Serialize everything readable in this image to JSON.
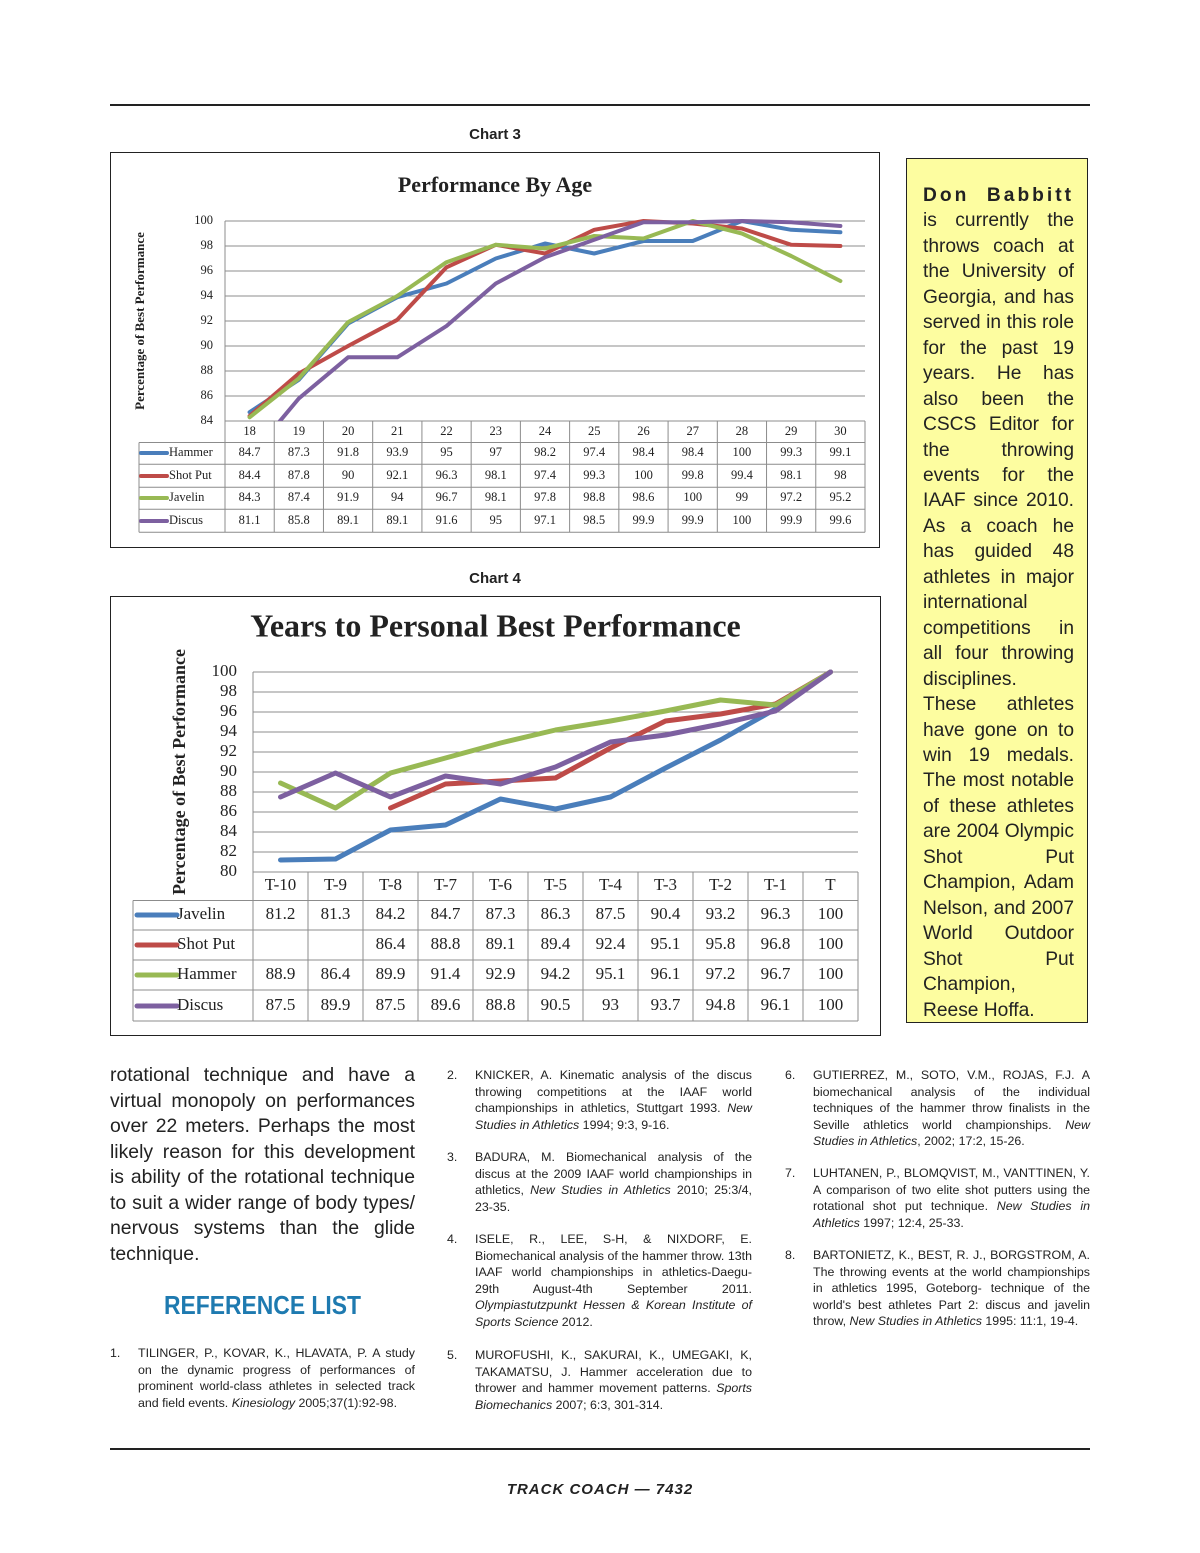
{
  "chart_data": [
    {
      "type": "line",
      "caption": "Chart 3",
      "title": "Performance By Age",
      "y_label": "Percentage of Best Performance",
      "categories": [
        "18",
        "19",
        "20",
        "21",
        "22",
        "23",
        "24",
        "25",
        "26",
        "27",
        "28",
        "29",
        "30"
      ],
      "series": [
        {
          "name": "Hammer",
          "color": "#4a7ebb",
          "values": [
            84.7,
            87.3,
            91.8,
            93.9,
            95,
            97,
            98.2,
            97.4,
            98.4,
            98.4,
            100,
            99.3,
            99.1
          ]
        },
        {
          "name": "Shot Put",
          "color": "#be4b48",
          "values": [
            84.4,
            87.8,
            90,
            92.1,
            96.3,
            98.1,
            97.4,
            99.3,
            100,
            99.8,
            99.4,
            98.1,
            98
          ]
        },
        {
          "name": "Javelin",
          "color": "#98b954",
          "values": [
            84.3,
            87.4,
            91.9,
            94,
            96.7,
            98.1,
            97.8,
            98.8,
            98.6,
            100,
            99,
            97.2,
            95.2
          ]
        },
        {
          "name": "Discus",
          "color": "#7d60a0",
          "values": [
            81.1,
            85.8,
            89.1,
            89.1,
            91.6,
            95,
            97.1,
            98.5,
            99.9,
            99.9,
            100,
            99.9,
            99.6
          ]
        }
      ],
      "ylim": [
        84,
        100
      ],
      "yticks": [
        84,
        86,
        88,
        90,
        92,
        94,
        96,
        98,
        100
      ],
      "grid": true
    },
    {
      "type": "line",
      "caption": "Chart 4",
      "title": "Years to Personal Best Performance",
      "y_label": "Percentage of Best Performance",
      "categories": [
        "T-10",
        "T-9",
        "T-8",
        "T-7",
        "T-6",
        "T-5",
        "T-4",
        "T-3",
        "T-2",
        "T-1",
        "T"
      ],
      "series": [
        {
          "name": "Javelin",
          "color": "#4a7ebb",
          "values": [
            81.2,
            81.3,
            84.2,
            84.7,
            87.3,
            86.3,
            87.5,
            90.4,
            93.2,
            96.3,
            100
          ]
        },
        {
          "name": "Shot Put",
          "color": "#be4b48",
          "values": [
            null,
            null,
            86.4,
            88.8,
            89.1,
            89.4,
            92.4,
            95.1,
            95.8,
            96.8,
            100
          ]
        },
        {
          "name": "Hammer",
          "color": "#98b954",
          "values": [
            88.9,
            86.4,
            89.9,
            91.4,
            92.9,
            94.2,
            95.1,
            96.1,
            97.2,
            96.7,
            100
          ]
        },
        {
          "name": "Discus",
          "color": "#7d60a0",
          "values": [
            87.5,
            89.9,
            87.5,
            89.6,
            88.8,
            90.5,
            93,
            93.7,
            94.8,
            96.1,
            100
          ]
        }
      ],
      "ylim": [
        80,
        100
      ],
      "yticks": [
        80,
        82,
        84,
        86,
        88,
        90,
        92,
        94,
        96,
        98,
        100
      ],
      "grid": true
    }
  ],
  "sidebar": {
    "name": "Don Babbitt",
    "text": "is currently the throws coach at the University of Georgia, and has served in this role for the past 19 years. He has also been the CSCS Editor for the throwing events for the IAAF since 2010. As a coach he has guided 48 athletes in major international competitions in all four throwing disciplines. These athletes have gone on to win 19 medals. The most notable of these athletes are 2004 Olympic Shot Put Champion, Adam Nelson, and 2007 World Outdoor Shot Put Champion, Reese Hoffa."
  },
  "body_text": "rotational technique and have a virtual monopoly on performances over 22 meters. Perhaps the most likely reason for this development is ability of the rotational technique to suit a wider range of body types/ nervous systems than the glide technique.",
  "reference_heading": "REFERENCE LIST",
  "references": [
    {
      "number": "1.",
      "parts": [
        "TILINGER, P., KOVAR, K., HLAVATA, P. A study on the dynamic progress of performances of prominent world-class athletes in selected track and field events. ",
        "Kinesiology",
        " 2005;37(1):92-98."
      ]
    },
    {
      "number": "2.",
      "parts": [
        "KNICKER, A. Kinematic analysis of the discus throwing competitions at the IAAF world championships in athletics, Stuttgart 1993. ",
        "New Studies in Athletics",
        " 1994; 9:3, 9-16."
      ]
    },
    {
      "number": "3.",
      "parts": [
        "BADURA, M. Biomechanical analysis of the discus at the 2009 IAAF world championships in athletics, ",
        "New Studies in Athletics",
        " 2010; 25:3/4, 23-35."
      ]
    },
    {
      "number": "4.",
      "parts": [
        "ISELE, R., LEE, S-H, & NIXDORF, E. Biomechanical analysis of the hammer throw. 13th IAAF world championships in athletics-Daegu-29th August-4th September 2011. ",
        "Olympiastutzpunkt Hessen & Korean Institute of Sports Science",
        " 2012."
      ]
    },
    {
      "number": "5.",
      "parts": [
        "MUROFUSHI, K., SAKURAI, K., UMEGAKI, K, TAKAMATSU, J. Hammer acceleration due to thrower and hammer movement patterns. ",
        "Sports Biomechanics",
        " 2007; 6:3, 301-314."
      ]
    },
    {
      "number": "6.",
      "parts": [
        "GUTIERREZ, M., SOTO, V.M., ROJAS, F.J. A biomechanical analysis of the individual techniques of the hammer throw finalists in the Seville athletics world championships. ",
        "New Studies in Athletics",
        ", 2002; 17:2, 15-26."
      ]
    },
    {
      "number": "7.",
      "parts": [
        "LUHTANEN, P., BLOMQVIST, M., VANTTINEN, Y. A comparison of two elite shot putters using the rotational shot put technique. ",
        "New Studies in Athletics",
        " 1997; 12:4, 25-33."
      ]
    },
    {
      "number": "8.",
      "parts": [
        "BARTONIETZ, K., BEST, R. J., BORGSTROM, A. The throwing events at the world championships in athletics 1995, Goteborg- technique of the world's best athletes Part 2: discus and javelin throw, ",
        "New Studies in Athletics",
        " 1995: 11:1, 19-4."
      ]
    }
  ],
  "footer": "TRACK COACH — 7432"
}
